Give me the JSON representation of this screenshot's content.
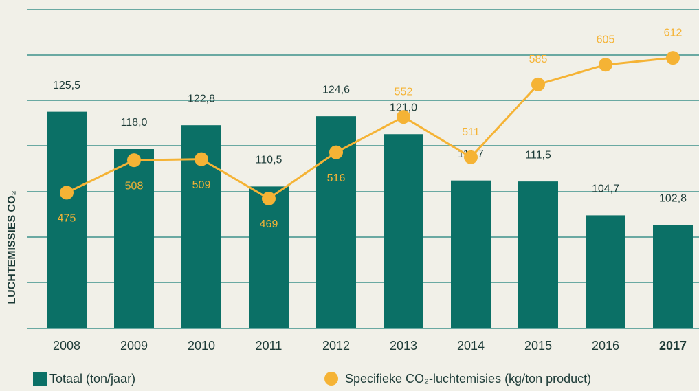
{
  "chart_data": {
    "type": "bar",
    "y_axis_label": "LUCHTEMISSIES CO₂",
    "categories": [
      "2008",
      "2009",
      "2010",
      "2011",
      "2012",
      "2013",
      "2014",
      "2015",
      "2016",
      "2017"
    ],
    "series": [
      {
        "name": "Totaal (ton/jaar)",
        "color": "#0b7066",
        "type": "bar",
        "values": [
          125.5,
          118.0,
          122.8,
          110.5,
          124.6,
          121.0,
          111.7,
          111.5,
          104.7,
          102.8
        ],
        "value_labels": [
          "125,5",
          "118,0",
          "122,8",
          "110,5",
          "124,6",
          "121,0",
          "111,7",
          "111,5",
          "104,7",
          "102,8"
        ]
      },
      {
        "name": "Specifieke CO₂-luchtemisies (kg/ton product)",
        "color": "#f5b335",
        "type": "line",
        "axis": "y2",
        "values": [
          475,
          508,
          509,
          469,
          516,
          552,
          511,
          585,
          605,
          612
        ]
      }
    ],
    "ylim": [
      82,
      146
    ],
    "y2lim": [
      337,
      661
    ]
  }
}
